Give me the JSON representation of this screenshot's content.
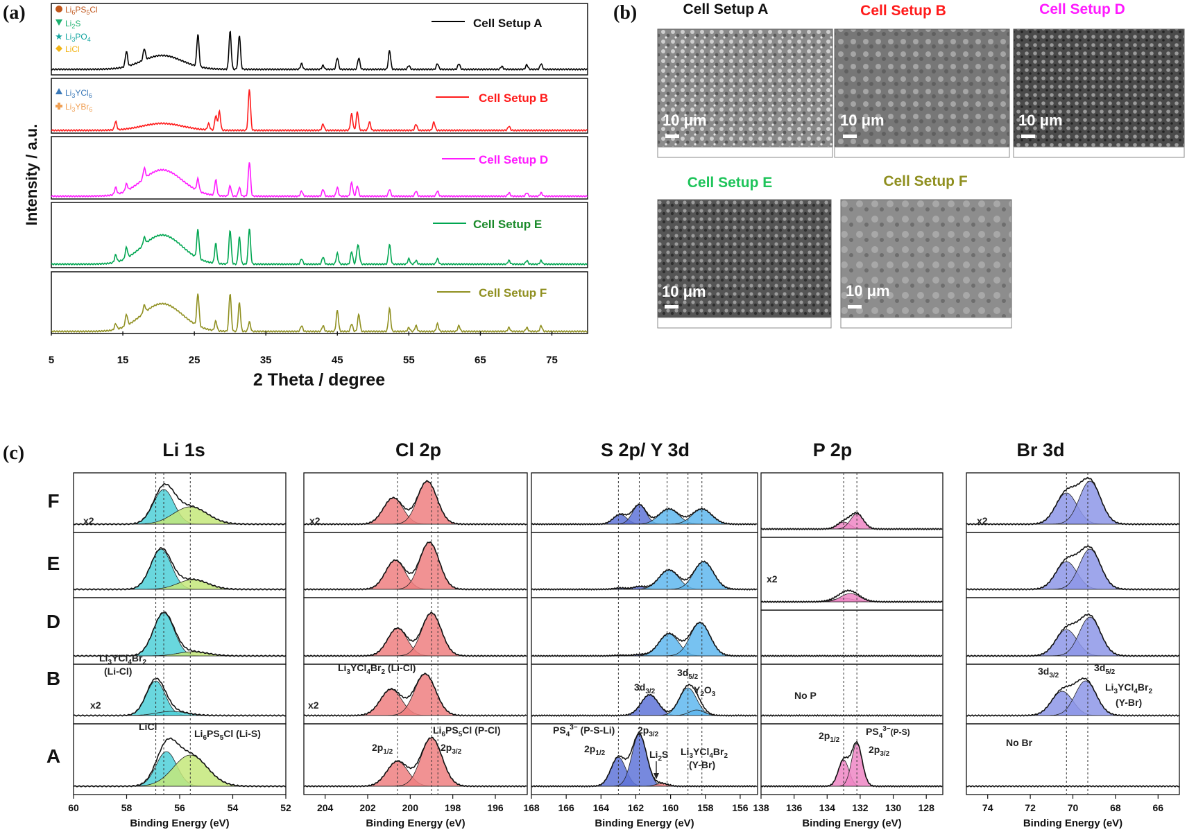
{
  "panel_labels": {
    "a": "(a)",
    "b": "(b)",
    "c": "(c)"
  },
  "colors": {
    "A": "#000000",
    "B": "#ff1a1a",
    "D": "#ff1aff",
    "E": "#00a651",
    "F": "#8f8f1f",
    "li6ps5cl": "#c0561b",
    "li2s": "#1bb06e",
    "li3po4": "#12a5a0",
    "licl": "#f2b416",
    "li3ycl6": "#3a78b8",
    "li3ybr6": "#f0a055"
  },
  "chart_data": [
    {
      "type": "line",
      "panel": "(a)",
      "xlabel": "2 Theta / degree",
      "ylabel": "Intensity / a.u.",
      "xlim": [
        5,
        80
      ],
      "x_ticks": [
        "5",
        "15",
        "25",
        "35",
        "45",
        "55",
        "65",
        "75"
      ],
      "series": [
        {
          "name": "Cell Setup A",
          "peaks": [
            15.5,
            18,
            25.5,
            30,
            31.3,
            40,
            43,
            45,
            48,
            52.3,
            55,
            59,
            62,
            68,
            71.5,
            73.5
          ]
        },
        {
          "name": "Cell Setup B",
          "peaks": [
            14,
            27,
            28,
            28.5,
            32.7,
            43,
            47,
            47.8,
            49.5,
            56,
            58.5,
            69
          ]
        },
        {
          "name": "Cell Setup D",
          "peaks": [
            14,
            15.5,
            18,
            25.5,
            28,
            30,
            31.3,
            32.7,
            40,
            43,
            45,
            47,
            47.8,
            52.3,
            56,
            59,
            69,
            71.5,
            73.5
          ]
        },
        {
          "name": "Cell Setup E",
          "peaks": [
            14,
            15.5,
            18,
            25.5,
            28,
            30,
            31.3,
            32.7,
            40,
            43,
            45,
            47,
            47.8,
            48,
            52.3,
            55,
            56,
            59,
            69,
            71.5,
            73.5
          ]
        },
        {
          "name": "Cell Setup F",
          "peaks": [
            14,
            15.5,
            18,
            25.5,
            28,
            30,
            31.3,
            32.7,
            40,
            43,
            45,
            47,
            48,
            52.3,
            55,
            56,
            59,
            62,
            69,
            71.5,
            73.5
          ]
        }
      ],
      "legend_1": [
        "Li6PS5Cl",
        "Li2S",
        "Li3PO4",
        "LiCl"
      ],
      "legend_2": [
        "Li3YCl6",
        "Li3YBr6"
      ]
    },
    {
      "type": "line",
      "panel": "(c) Li 1s",
      "title": "Li 1s",
      "xlabel": "Binding Energy (eV)",
      "x_ticks": [
        "60",
        "58",
        "56",
        "54",
        "52"
      ],
      "xlim": [
        60,
        52
      ],
      "rows": [
        "F",
        "E",
        "D",
        "B",
        "A"
      ],
      "components": [
        {
          "name": "LiCl",
          "center": 56.6
        },
        {
          "name": "Li6PS5Cl (Li-S)",
          "center": 55.6
        },
        {
          "name": "Li3YCl4Br2 (Li-Cl)",
          "center": 56.9
        }
      ]
    },
    {
      "type": "line",
      "panel": "(c) Cl 2p",
      "title": "Cl 2p",
      "xlabel": "Binding Energy (eV)",
      "x_ticks": [
        "204",
        "202",
        "200",
        "198",
        "196"
      ],
      "xlim": [
        205,
        194.5
      ],
      "rows": [
        "F",
        "E",
        "D",
        "B",
        "A"
      ],
      "components": [
        {
          "name": "2p1/2",
          "center": 200.6
        },
        {
          "name": "2p3/2",
          "center": 199.0
        }
      ]
    },
    {
      "type": "line",
      "panel": "(c) S 2p/ Y 3d",
      "title": "S 2p/ Y 3d",
      "xlabel": "Binding Energy (eV)",
      "x_ticks": [
        "168",
        "166",
        "164",
        "162",
        "160",
        "158",
        "156"
      ],
      "xlim": [
        168,
        155
      ],
      "rows": [
        "F",
        "E",
        "D",
        "B",
        "A"
      ],
      "components": [
        {
          "name": "2p1/2",
          "center": 163.0
        },
        {
          "name": "2p3/2",
          "center": 161.8
        },
        {
          "name": "3d3/2",
          "center": 161.0
        },
        {
          "name": "3d5/2",
          "center": 158.9
        }
      ]
    },
    {
      "type": "line",
      "panel": "(c) P 2p",
      "title": "P 2p",
      "xlabel": "Binding Energy (eV)",
      "x_ticks": [
        "138",
        "136",
        "134",
        "132",
        "130",
        "128"
      ],
      "xlim": [
        138,
        127
      ],
      "rows": [
        "F",
        "E",
        "D",
        "B",
        "A"
      ],
      "components": [
        {
          "name": "2p1/2",
          "center": 133.0
        },
        {
          "name": "2p3/2",
          "center": 132.2
        }
      ]
    },
    {
      "type": "line",
      "panel": "(c) Br 3d",
      "title": "Br 3d",
      "xlabel": "Binding Energy (eV)",
      "x_ticks": [
        "74",
        "72",
        "70",
        "68",
        "66"
      ],
      "xlim": [
        75,
        65
      ],
      "rows": [
        "F",
        "E",
        "D",
        "B",
        "A"
      ],
      "components": [
        {
          "name": "3d3/2",
          "center": 70.4
        },
        {
          "name": "3d5/2",
          "center": 69.3
        }
      ]
    }
  ],
  "panel_a": {
    "ylabel": "Intensity / a.u.",
    "xlabel": "2 Theta / degree",
    "series_labels": [
      "Cell Setup A",
      "Cell Setup B",
      "Cell Setup D",
      "Cell Setup E",
      "Cell Setup F"
    ],
    "legend_1": {
      "l1": "Li",
      "l1s": "6",
      "l1b": "PS",
      "l1s2": "5",
      "l1c": "Cl",
      "l2": "Li",
      "l2s": "2",
      "l2b": "S",
      "l3": "Li",
      "l3s": "3",
      "l3b": "PO",
      "l3s2": "4",
      "l4": "LiCl"
    },
    "legend_2": {
      "l1": "Li",
      "l1s": "3",
      "l1b": "YCl",
      "l1s2": "6",
      "l2": "Li",
      "l2s": "3",
      "l2b": "YBr",
      "l2s2": "6"
    }
  },
  "panel_b": {
    "titles": [
      "Cell Setup A",
      "Cell Setup B",
      "Cell Setup D",
      "Cell Setup E",
      "Cell Setup F"
    ],
    "scale_bar": "10 μm"
  },
  "panel_c": {
    "row_labels": [
      "F",
      "E",
      "D",
      "B",
      "A"
    ],
    "titles": [
      "Li 1s",
      "Cl 2p",
      "S 2p/ Y 3d",
      "P 2p",
      "Br 3d"
    ],
    "xlabel": "Binding Energy (eV)",
    "x2": "x2",
    "li": {
      "licl": "LiCl",
      "lips": "Li",
      "lips_s1": "6",
      "lips_b": "PS",
      "lips_s2": "5",
      "lips_c": "Cl (Li-S)",
      "lyc": "Li",
      "lyc_s1": "3",
      "lyc_b": "YCl",
      "lyc_s2": "4",
      "lyc_c": "Br",
      "lyc_s3": "2",
      "lyc_sub": "(Li-Cl)"
    },
    "cl": {
      "lyc": "Li",
      "lyc_s1": "3",
      "lyc_b": "YCl",
      "lyc_s2": "4",
      "lyc_c": "Br",
      "lyc_s3": "2",
      "lyc_d": " (Li-Cl)",
      "p12": "2p",
      "p12s": "1/2",
      "p32": "2p",
      "p32s": "3/2",
      "lips": "Li",
      "lips_s1": "6",
      "lips_b": "PS",
      "lips_s2": "5",
      "lips_c": "Cl (P-Cl)"
    },
    "s": {
      "ps4": "PS",
      "ps4_s": "4",
      "ps4_sup": "3−",
      "ps4_c": " (P-S-Li)",
      "p32": "2p",
      "p32s": "3/2",
      "p12": "2p",
      "p12s": "1/2",
      "li2s": "Li",
      "li2s_s": "2",
      "li2s_b": "S",
      "d32": "3d",
      "d32s": "3/2",
      "d52": "3d",
      "d52s": "5/2",
      "y2o3": "Y",
      "y2o3_s": "2",
      "y2o3_b": "O",
      "y2o3_s2": "3",
      "lyc": "Li",
      "lyc_s1": "3",
      "lyc_b": "YCl",
      "lyc_s2": "4",
      "lyc_c": "Br",
      "lyc_s3": "2",
      "lyc_sub": "(Y-Br)"
    },
    "p": {
      "nop": "No P",
      "p12": "2p",
      "p12s": "1/2",
      "ps4": "PS",
      "ps4_s": "4",
      "ps4_sup": "3−",
      "ps4_c": "(P-S)",
      "p32": "2p",
      "p32s": "3/2"
    },
    "br": {
      "nobr": "No Br",
      "d32": "3d",
      "d32s": "3/2",
      "d52": "3d",
      "d52s": "5/2",
      "lyc": "Li",
      "lyc_s1": "3",
      "lyc_b": "YCl",
      "lyc_s2": "4",
      "lyc_c": "Br",
      "lyc_s3": "2",
      "lyc_sub": "(Y-Br)"
    }
  }
}
